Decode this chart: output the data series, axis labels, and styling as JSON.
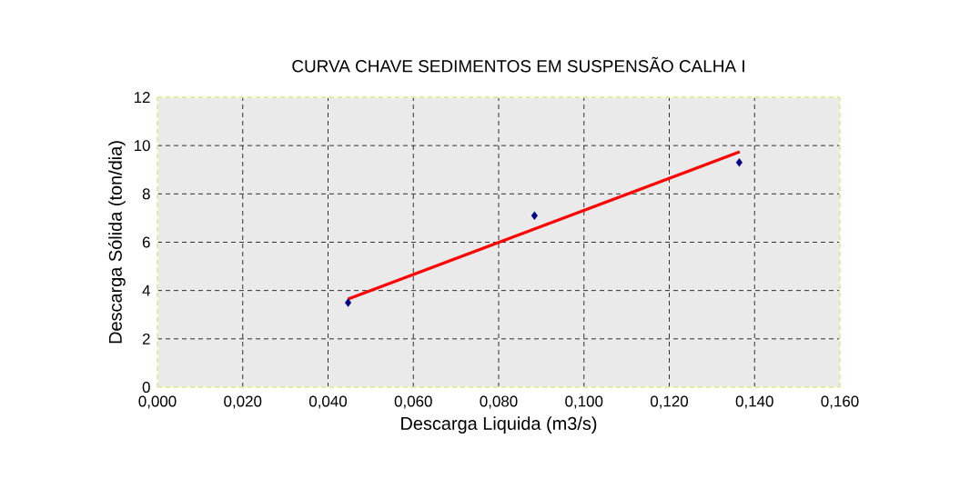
{
  "chart_data": {
    "type": "scatter",
    "title": "CURVA CHAVE SEDIMENTOS EM SUSPENSÃO CALHA I",
    "xlabel": "Descarga Liquida (m3/s)",
    "ylabel": "Descarga Sólida (ton/dia)",
    "x": [
      0.0447,
      0.0884,
      0.1364
    ],
    "series": [
      {
        "color": "#000080",
        "marker": "diamond",
        "values": [
          3.5,
          7.1,
          9.3
        ]
      },
      {
        "type": "line",
        "color": "#ff0000",
        "x": [
          0.0447,
          0.1365
        ],
        "values": [
          3.65,
          9.74
        ]
      }
    ],
    "xlim": [
      0,
      0.16
    ],
    "xticks": [
      {
        "value": 0,
        "label": "0,000"
      },
      {
        "value": 0.02,
        "label": "0,020"
      },
      {
        "value": 0.04,
        "label": "0,040"
      },
      {
        "value": 0.06,
        "label": "0,060"
      },
      {
        "value": 0.08,
        "label": "0,080"
      },
      {
        "value": 0.1,
        "label": "0,100"
      },
      {
        "value": 0.12,
        "label": "0,120"
      },
      {
        "value": 0.14,
        "label": "0,140"
      },
      {
        "value": 0.16,
        "label": "0,160"
      }
    ],
    "ylim": [
      0,
      12
    ],
    "yticks": [
      0,
      2,
      4,
      6,
      8,
      10,
      12
    ],
    "grid": true
  }
}
